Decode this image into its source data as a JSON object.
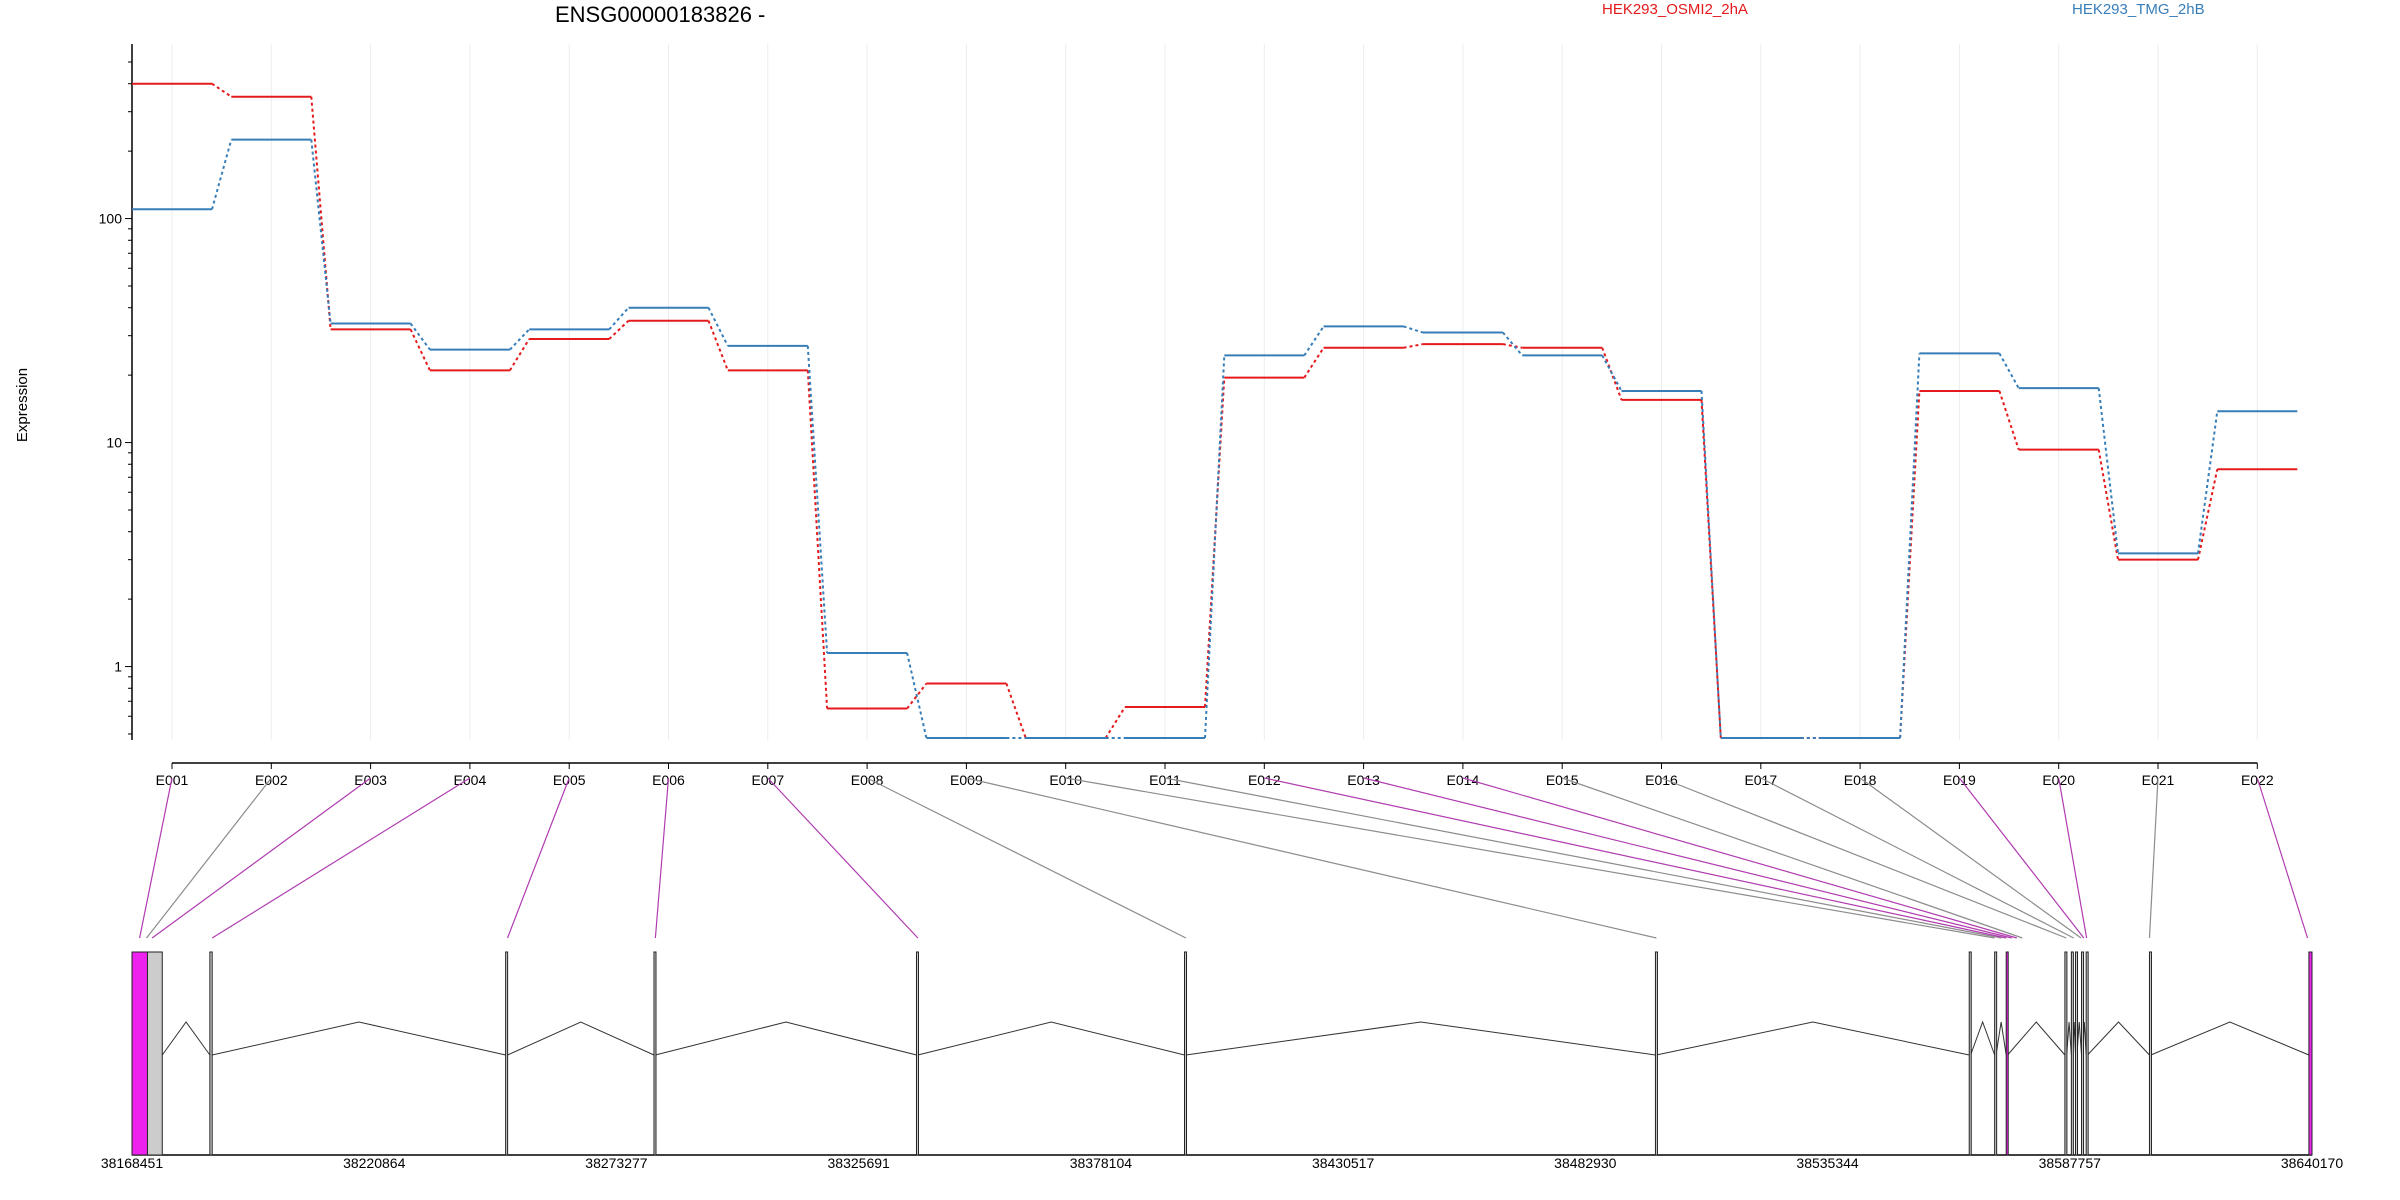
{
  "chart_data": {
    "type": "line",
    "title": "ENSG00000183826 -",
    "ylabel": "Expression",
    "xlabel": "",
    "yscale": "log",
    "ylim": [
      0.47,
      500
    ],
    "yticks": [
      "1",
      "10",
      "100"
    ],
    "grid": "vertical lines at exon centers",
    "legend_position": "top-right",
    "categories": [
      "E001",
      "E002",
      "E003",
      "E004",
      "E005",
      "E006",
      "E007",
      "E008",
      "E009",
      "E010",
      "E011",
      "E012",
      "E013",
      "E014",
      "E015",
      "E016",
      "E017",
      "E018",
      "E019",
      "E020",
      "E021",
      "E022"
    ],
    "series": [
      {
        "name": "HEK293_OSMI2_2hA",
        "color": "#e41a1c",
        "values": [
          400,
          350,
          32,
          21,
          29,
          35,
          21,
          0.65,
          0.84,
          0.48,
          0.66,
          19.5,
          26.5,
          27.5,
          26.5,
          15.5,
          0.48,
          0.48,
          17,
          9.3,
          3.0,
          7.6
        ]
      },
      {
        "name": "HEK293_TMG_2hB",
        "color": "#377eb8",
        "values": [
          110,
          225,
          34,
          26,
          32,
          40,
          27,
          1.15,
          0.48,
          0.48,
          0.48,
          24.5,
          33,
          31,
          24.5,
          17,
          0.48,
          0.48,
          25,
          17.5,
          3.2,
          13.8
        ]
      }
    ],
    "gene_model": {
      "coordinate_labels": [
        "38168451",
        "38220864",
        "38273277",
        "38325691",
        "38378104",
        "38430517",
        "38482930",
        "38535344",
        "38587757",
        "38640170"
      ],
      "coordinate_ticks": [
        38168451,
        38220864,
        38273277,
        38325691,
        38378104,
        38430517,
        38482930,
        38535344,
        38587757,
        38640170
      ],
      "range": [
        38168451,
        38640170
      ],
      "highlight_color": "#ee22ee",
      "neutral_color": "#cccccc",
      "exon_to_position": [
        {
          "exon": "E001",
          "pos": 38170100,
          "highlight": true
        },
        {
          "exon": "E002",
          "pos": 38171600,
          "highlight": false
        },
        {
          "exon": "E003",
          "pos": 38172800,
          "highlight": true
        },
        {
          "exon": "E004",
          "pos": 38185800,
          "highlight": true
        },
        {
          "exon": "E005",
          "pos": 38249700,
          "highlight": true
        },
        {
          "exon": "E006",
          "pos": 38281700,
          "highlight": true
        },
        {
          "exon": "E007",
          "pos": 38338500,
          "highlight": true
        },
        {
          "exon": "E008",
          "pos": 38396500,
          "highlight": false
        },
        {
          "exon": "E009",
          "pos": 38498300,
          "highlight": false
        },
        {
          "exon": "E010",
          "pos": 38571500,
          "highlight": false
        },
        {
          "exon": "E011",
          "pos": 38573000,
          "highlight": false
        },
        {
          "exon": "E012",
          "pos": 38574000,
          "highlight": true
        },
        {
          "exon": "E013",
          "pos": 38575200,
          "highlight": true
        },
        {
          "exon": "E014",
          "pos": 38576300,
          "highlight": true
        },
        {
          "exon": "E015",
          "pos": 38577500,
          "highlight": false
        },
        {
          "exon": "E016",
          "pos": 38587000,
          "highlight": false
        },
        {
          "exon": "E017",
          "pos": 38588600,
          "highlight": false
        },
        {
          "exon": "E018",
          "pos": 38590200,
          "highlight": false
        },
        {
          "exon": "E019",
          "pos": 38590800,
          "highlight": true
        },
        {
          "exon": "E020",
          "pos": 38591400,
          "highlight": true
        },
        {
          "exon": "E021",
          "pos": 38605000,
          "highlight": false
        },
        {
          "exon": "E022",
          "pos": 38639200,
          "highlight": true
        }
      ],
      "blocks": [
        {
          "start": 38168451,
          "end": 38171800,
          "highlight": true
        },
        {
          "start": 38171800,
          "end": 38175000,
          "highlight": false
        },
        {
          "start": 38185300,
          "end": 38185800,
          "highlight": false
        },
        {
          "start": 38249300,
          "end": 38249700,
          "highlight": false
        },
        {
          "start": 38281400,
          "end": 38281700,
          "highlight": false
        },
        {
          "start": 38338200,
          "end": 38338500,
          "highlight": false
        },
        {
          "start": 38396200,
          "end": 38396500,
          "highlight": false
        },
        {
          "start": 38498100,
          "end": 38498300,
          "highlight": false
        },
        {
          "start": 38566000,
          "end": 38566300,
          "highlight": false
        },
        {
          "start": 38571500,
          "end": 38571800,
          "highlight": false
        },
        {
          "start": 38574000,
          "end": 38574300,
          "highlight": true
        },
        {
          "start": 38586700,
          "end": 38587100,
          "highlight": false
        },
        {
          "start": 38588100,
          "end": 38588400,
          "highlight": false
        },
        {
          "start": 38589000,
          "end": 38589300,
          "highlight": false
        },
        {
          "start": 38590300,
          "end": 38590500,
          "highlight": false
        },
        {
          "start": 38591300,
          "end": 38591600,
          "highlight": false
        },
        {
          "start": 38605000,
          "end": 38605300,
          "highlight": false
        },
        {
          "start": 38639500,
          "end": 38640170,
          "highlight": true
        }
      ]
    }
  }
}
